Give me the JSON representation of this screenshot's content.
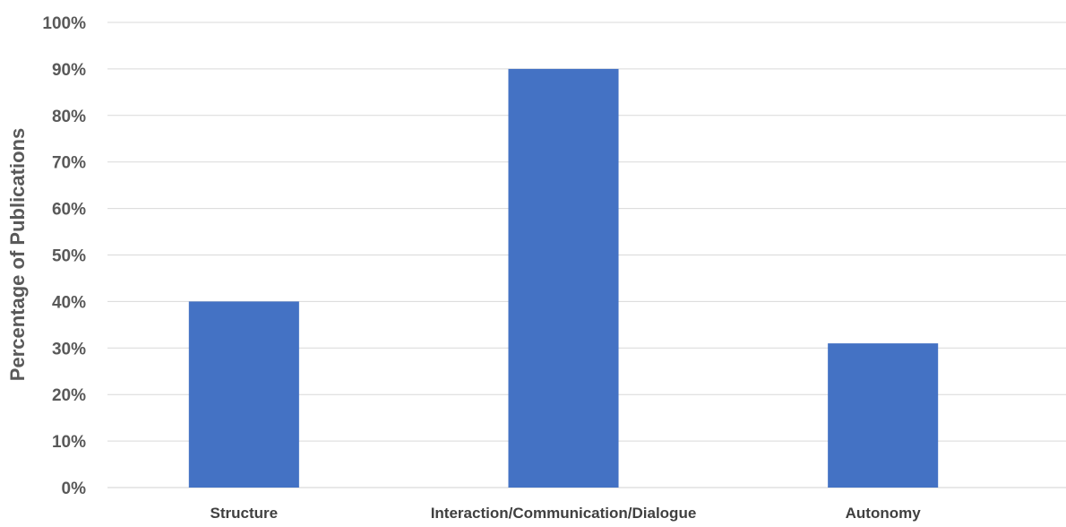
{
  "chart_data": {
    "type": "bar",
    "categories": [
      "Structure",
      "Interaction/Communication/Dialogue",
      "Autonomy"
    ],
    "series": [
      {
        "values": [
          40,
          90,
          31
        ]
      }
    ],
    "ylabel": "Percentage of Publications",
    "xlabel": "",
    "ylim": [
      0,
      100
    ],
    "y_ticks": [
      "0%",
      "10%",
      "20%",
      "30%",
      "40%",
      "50%",
      "60%",
      "70%",
      "80%",
      "90%",
      "100%"
    ],
    "grid": true,
    "legend": "none",
    "colors": {
      "bar": "#4472c4",
      "gridline": "#d9d9d9",
      "tick_text": "#595959",
      "category_text": "#404040"
    }
  }
}
